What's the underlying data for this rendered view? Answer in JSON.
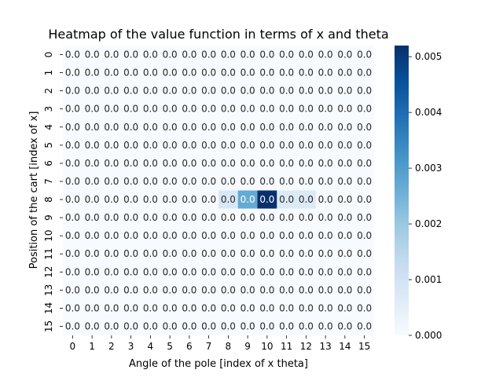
{
  "chart_data": {
    "type": "heatmap",
    "title": "Heatmap of the value function in terms of x and theta",
    "xlabel": "Angle of the pole [index of x theta]",
    "ylabel": "Position of the cart [index of x]",
    "x_categories": [
      "0",
      "1",
      "2",
      "3",
      "4",
      "5",
      "6",
      "7",
      "8",
      "9",
      "10",
      "11",
      "12",
      "13",
      "14",
      "15"
    ],
    "y_categories": [
      "0",
      "1",
      "2",
      "3",
      "4",
      "5",
      "6",
      "7",
      "8",
      "9",
      "10",
      "11",
      "12",
      "13",
      "14",
      "15"
    ],
    "cell_label": "0.0",
    "colormap": "Blues",
    "color_range": [
      0,
      0.0052
    ],
    "colorbar_ticks": [
      "0.000",
      "0.001",
      "0.002",
      "0.003",
      "0.004",
      "0.005"
    ],
    "colorbar_tick_values": [
      0,
      0.001,
      0.002,
      0.003,
      0.004,
      0.005
    ],
    "nonzero_cells": [
      {
        "row": 8,
        "col": 8,
        "value": 0.0008
      },
      {
        "row": 8,
        "col": 9,
        "value": 0.0027
      },
      {
        "row": 8,
        "col": 10,
        "value": 0.0052
      },
      {
        "row": 8,
        "col": 11,
        "value": 0.0007
      },
      {
        "row": 8,
        "col": 12,
        "value": 0.0007
      }
    ]
  }
}
